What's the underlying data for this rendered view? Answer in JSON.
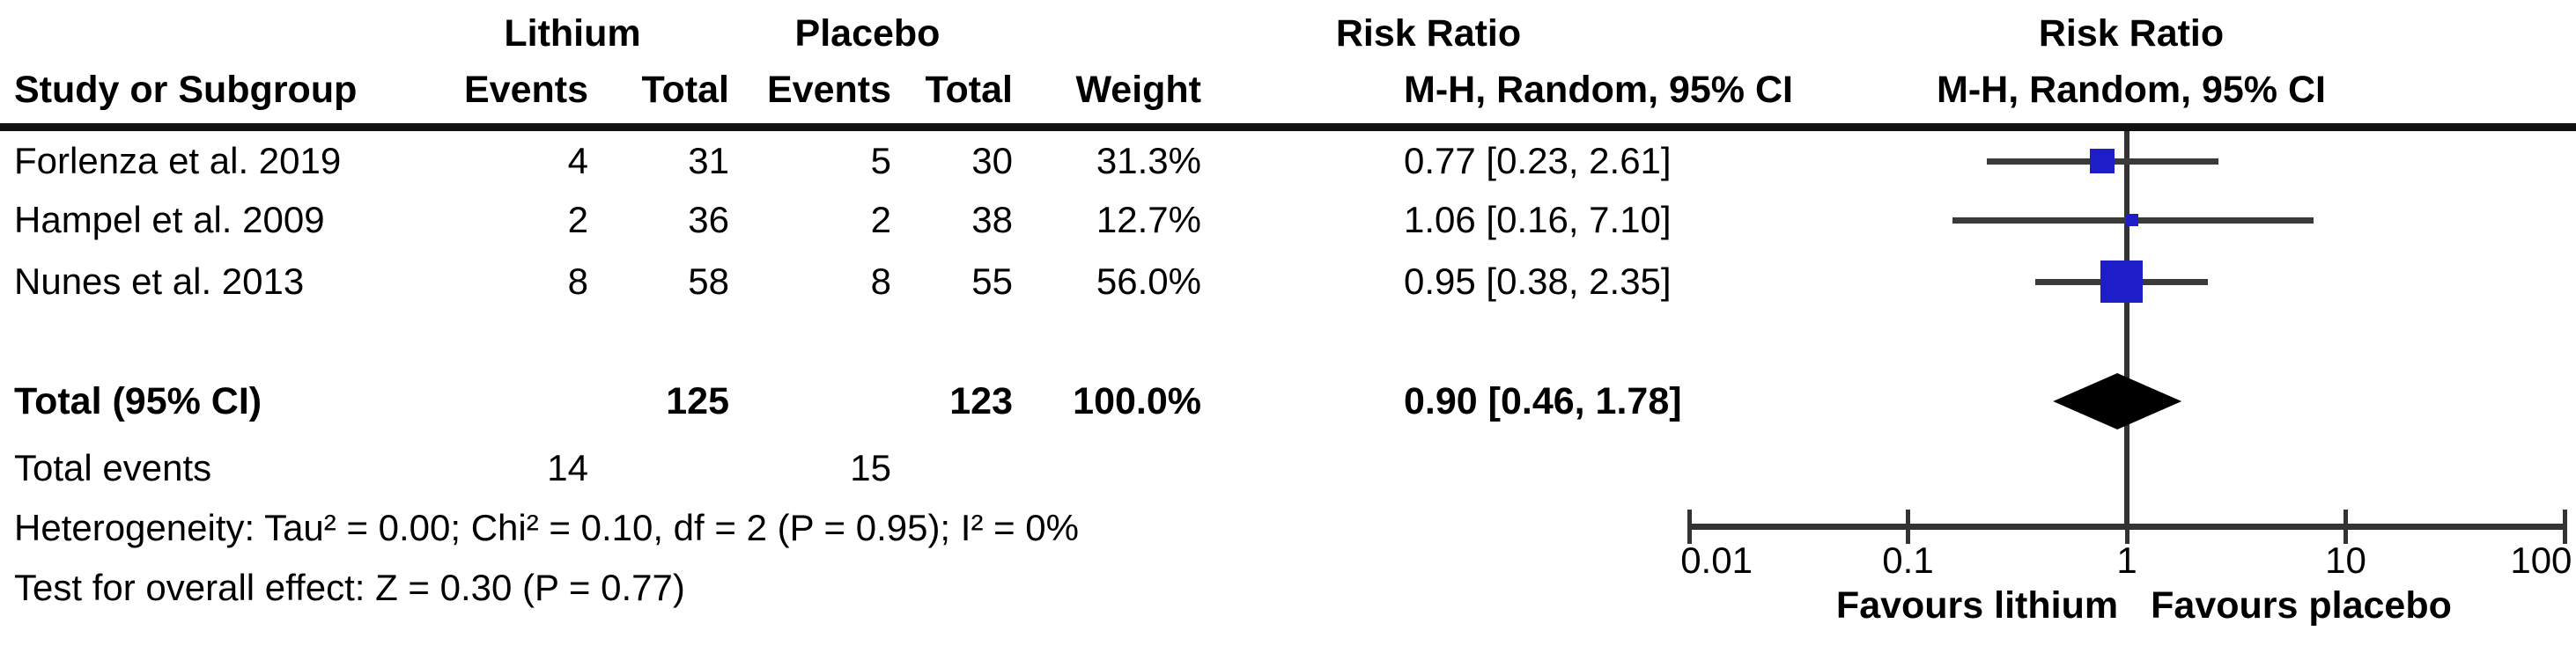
{
  "colors": {
    "marker_blue": "#1e1ec8",
    "line_dark": "#3a3a3a",
    "axis_dark": "#333333",
    "diamond_black": "#000000"
  },
  "header": {
    "study_col": "Study or Subgroup",
    "group_lithium": "Lithium",
    "group_placebo": "Placebo",
    "group_risk_ratio": "Risk Ratio",
    "events": "Events",
    "total": "Total",
    "weight": "Weight",
    "mh_ci": "M-H, Random, 95% CI",
    "plot_title_line1": "Risk Ratio",
    "plot_title_line2": "M-H, Random, 95% CI"
  },
  "table": {
    "rows": [
      {
        "study": "Forlenza et al. 2019",
        "li_events": "4",
        "li_total": "31",
        "pl_events": "5",
        "pl_total": "30",
        "weight": "31.3%",
        "rr_ci": "0.77 [0.23, 2.61]"
      },
      {
        "study": "Hampel et al. 2009",
        "li_events": "2",
        "li_total": "36",
        "pl_events": "2",
        "pl_total": "38",
        "weight": "12.7%",
        "rr_ci": "1.06 [0.16, 7.10]"
      },
      {
        "study": "Nunes et al. 2013",
        "li_events": "8",
        "li_total": "58",
        "pl_events": "8",
        "pl_total": "55",
        "weight": "56.0%",
        "rr_ci": "0.95 [0.38, 2.35]"
      }
    ],
    "total_row": {
      "label": "Total (95% CI)",
      "li_total": "125",
      "pl_total": "123",
      "weight": "100.0%",
      "rr_ci": "0.90 [0.46, 1.78]"
    },
    "total_events_row": {
      "label": "Total events",
      "li_events": "14",
      "pl_events": "15"
    },
    "heterogeneity": "Heterogeneity: Tau² = 0.00; Chi² = 0.10, df = 2 (P = 0.95); I² = 0%",
    "overall_effect": "Test for overall effect: Z = 0.30 (P = 0.77)"
  },
  "chart_data": {
    "type": "forest",
    "effect_measure": "Risk Ratio",
    "model": "M-H, Random, 95% CI",
    "x_scale": "log",
    "x_ticks": [
      0.01,
      0.1,
      1,
      10,
      100
    ],
    "x_tick_labels": [
      "0.01",
      "0.1",
      "1",
      "10",
      "100"
    ],
    "x_range": [
      0.01,
      100
    ],
    "null_line": 1,
    "axis_label_left": "Favours lithium",
    "axis_label_right": "Favours placebo",
    "studies": [
      {
        "name": "Forlenza et al. 2019",
        "rr": 0.77,
        "ci_low": 0.23,
        "ci_high": 2.61,
        "weight_pct": 31.3
      },
      {
        "name": "Hampel et al. 2009",
        "rr": 1.06,
        "ci_low": 0.16,
        "ci_high": 7.1,
        "weight_pct": 12.7
      },
      {
        "name": "Nunes et al. 2013",
        "rr": 0.95,
        "ci_low": 0.38,
        "ci_high": 2.35,
        "weight_pct": 56.0
      }
    ],
    "total": {
      "label": "Total (95% CI)",
      "rr": 0.9,
      "ci_low": 0.46,
      "ci_high": 1.78,
      "weight_pct": 100.0
    }
  }
}
